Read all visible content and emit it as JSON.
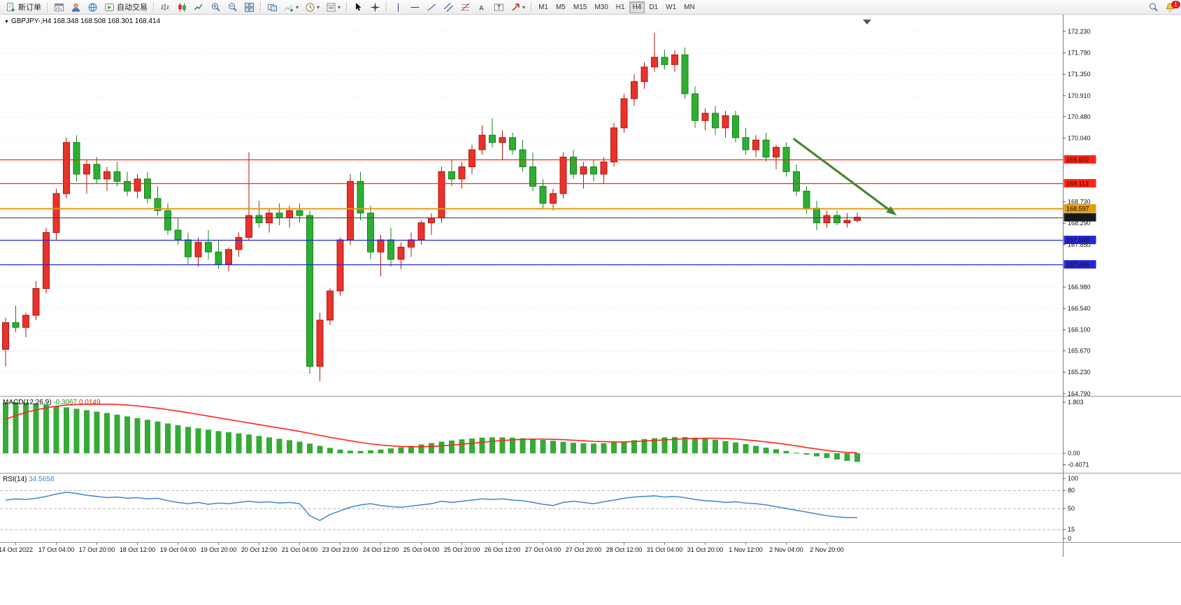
{
  "toolbar": {
    "new_order_label": "新订单",
    "autotrading_label": "自动交易",
    "timeframes": [
      "M1",
      "M5",
      "M15",
      "M30",
      "H1",
      "H4",
      "D1",
      "W1",
      "MN"
    ],
    "active_timeframe": "H4",
    "notification_count": "1"
  },
  "chart": {
    "symbol_label": "GBPJPY-,H4",
    "ohlc_text": "168.348 168.508 168.301 168.414"
  },
  "chart_data": {
    "type": "candlestick",
    "symbol": "GBPJPY-",
    "timeframe": "H4",
    "last_ohlc": {
      "open": "168.348",
      "high": "168.508",
      "low": "168.301",
      "close": "168.414"
    },
    "price_axis_ticks": [
      "172.230",
      "171.790",
      "171.350",
      "170.910",
      "170.480",
      "170.040",
      "168.730",
      "168.290",
      "167.850",
      "167.410",
      "166.980",
      "166.540",
      "166.100",
      "165.670",
      "165.230",
      "164.790"
    ],
    "time_labels": [
      "14 Oct 2022",
      "17 Oct 04:00",
      "17 Oct 20:00",
      "18 Oct 12:00",
      "19 Oct 04:00",
      "19 Oct 20:00",
      "20 Oct 12:00",
      "21 Oct 04:00",
      "23 Oct 23:00",
      "24 Oct 12:00",
      "25 Oct 04:00",
      "25 Oct 20:00",
      "26 Oct 12:00",
      "27 Oct 04:00",
      "27 Oct 20:00",
      "28 Oct 12:00",
      "31 Oct 04:00",
      "31 Oct 20:00",
      "1 Nov 12:00",
      "2 Nov 04:00",
      "2 Nov 20:00"
    ],
    "time_label_first_index": 1,
    "time_label_step": 4,
    "candles": [
      [
        165.7,
        166.35,
        165.35,
        166.25
      ],
      [
        166.25,
        166.6,
        166.05,
        166.15
      ],
      [
        166.15,
        166.45,
        165.95,
        166.4
      ],
      [
        166.4,
        167.1,
        166.3,
        166.95
      ],
      [
        166.95,
        168.2,
        166.85,
        168.1
      ],
      [
        168.1,
        169.0,
        167.95,
        168.9
      ],
      [
        168.9,
        170.05,
        168.8,
        169.95
      ],
      [
        169.95,
        170.1,
        169.15,
        169.3
      ],
      [
        169.3,
        169.6,
        168.9,
        169.5
      ],
      [
        169.5,
        169.65,
        169.1,
        169.2
      ],
      [
        169.2,
        169.45,
        168.95,
        169.35
      ],
      [
        169.35,
        169.55,
        169.05,
        169.15
      ],
      [
        169.15,
        169.35,
        168.85,
        168.95
      ],
      [
        168.95,
        169.3,
        168.8,
        169.2
      ],
      [
        169.2,
        169.35,
        168.7,
        168.8
      ],
      [
        168.8,
        169.05,
        168.45,
        168.55
      ],
      [
        168.55,
        168.7,
        168.05,
        168.15
      ],
      [
        168.15,
        168.4,
        167.85,
        167.95
      ],
      [
        167.95,
        168.1,
        167.45,
        167.6
      ],
      [
        167.6,
        168.0,
        167.4,
        167.9
      ],
      [
        167.9,
        168.15,
        167.55,
        167.7
      ],
      [
        167.7,
        167.95,
        167.35,
        167.45
      ],
      [
        167.45,
        167.8,
        167.3,
        167.75
      ],
      [
        167.75,
        168.1,
        167.6,
        168.0
      ],
      [
        168.0,
        169.75,
        167.95,
        168.45
      ],
      [
        168.45,
        168.75,
        168.2,
        168.3
      ],
      [
        168.3,
        168.6,
        168.1,
        168.5
      ],
      [
        168.5,
        168.7,
        168.25,
        168.4
      ],
      [
        168.4,
        168.65,
        168.2,
        168.55
      ],
      [
        168.55,
        168.7,
        168.3,
        168.45
      ],
      [
        168.45,
        168.55,
        165.2,
        165.35
      ],
      [
        165.35,
        166.45,
        165.05,
        166.3
      ],
      [
        166.3,
        166.95,
        166.2,
        166.9
      ],
      [
        166.9,
        168.0,
        166.8,
        167.95
      ],
      [
        167.95,
        169.3,
        167.85,
        169.15
      ],
      [
        169.15,
        169.35,
        168.35,
        168.5
      ],
      [
        168.5,
        168.65,
        167.55,
        167.7
      ],
      [
        167.7,
        168.05,
        167.2,
        167.95
      ],
      [
        167.95,
        168.2,
        167.4,
        167.55
      ],
      [
        167.55,
        167.9,
        167.35,
        167.8
      ],
      [
        167.8,
        168.1,
        167.6,
        167.95
      ],
      [
        167.95,
        168.35,
        167.85,
        168.3
      ],
      [
        168.3,
        168.5,
        168.05,
        168.4
      ],
      [
        168.4,
        169.45,
        168.3,
        169.35
      ],
      [
        169.35,
        169.6,
        169.05,
        169.2
      ],
      [
        169.2,
        169.55,
        169.0,
        169.45
      ],
      [
        169.45,
        169.9,
        169.3,
        169.8
      ],
      [
        169.8,
        170.3,
        169.7,
        170.1
      ],
      [
        170.1,
        170.45,
        169.85,
        169.95
      ],
      [
        169.95,
        170.2,
        169.6,
        170.05
      ],
      [
        170.05,
        170.15,
        169.7,
        169.8
      ],
      [
        169.8,
        170.0,
        169.35,
        169.45
      ],
      [
        169.45,
        169.75,
        168.95,
        169.05
      ],
      [
        169.05,
        169.2,
        168.6,
        168.7
      ],
      [
        168.7,
        169.0,
        168.55,
        168.9
      ],
      [
        168.9,
        169.75,
        168.8,
        169.65
      ],
      [
        169.65,
        169.8,
        169.2,
        169.3
      ],
      [
        169.3,
        169.55,
        169.0,
        169.45
      ],
      [
        169.45,
        169.6,
        169.15,
        169.3
      ],
      [
        169.3,
        169.65,
        169.1,
        169.55
      ],
      [
        169.55,
        170.35,
        169.45,
        170.25
      ],
      [
        170.25,
        170.95,
        170.15,
        170.85
      ],
      [
        170.85,
        171.35,
        170.7,
        171.2
      ],
      [
        171.2,
        171.6,
        171.05,
        171.5
      ],
      [
        171.5,
        172.2,
        171.4,
        171.7
      ],
      [
        171.7,
        171.85,
        171.45,
        171.55
      ],
      [
        171.55,
        171.85,
        171.4,
        171.75
      ],
      [
        171.75,
        171.9,
        170.85,
        170.95
      ],
      [
        170.95,
        171.1,
        170.25,
        170.4
      ],
      [
        170.4,
        170.65,
        170.2,
        170.55
      ],
      [
        170.55,
        170.7,
        170.1,
        170.25
      ],
      [
        170.25,
        170.6,
        170.05,
        170.5
      ],
      [
        170.5,
        170.6,
        169.95,
        170.05
      ],
      [
        170.05,
        170.25,
        169.7,
        169.8
      ],
      [
        169.8,
        170.1,
        169.65,
        170.0
      ],
      [
        170.0,
        170.15,
        169.55,
        169.65
      ],
      [
        169.65,
        169.9,
        169.4,
        169.85
      ],
      [
        169.85,
        169.95,
        169.25,
        169.35
      ],
      [
        169.35,
        169.5,
        168.85,
        168.95
      ],
      [
        168.95,
        169.05,
        168.5,
        168.6
      ],
      [
        168.6,
        168.75,
        168.15,
        168.3
      ],
      [
        168.3,
        168.55,
        168.2,
        168.45
      ],
      [
        168.45,
        168.55,
        168.25,
        168.3
      ],
      [
        168.3,
        168.5,
        168.2,
        168.35
      ],
      [
        168.348,
        168.508,
        168.301,
        168.414
      ]
    ],
    "h_lines": [
      {
        "price": 169.602,
        "label": "169.602",
        "color": "red"
      },
      {
        "price": 169.113,
        "label": "169.113",
        "color": "red"
      },
      {
        "price": 168.597,
        "label": "168.597",
        "color": "gold"
      },
      {
        "price": 167.948,
        "label": "167.948",
        "color": "blue"
      },
      {
        "price": 167.446,
        "label": "167.446",
        "color": "blue"
      }
    ],
    "current_price": {
      "price": 168.414,
      "label": "168.414"
    },
    "trend_arrow": {
      "from_index": 77.7,
      "from_price": 170.03,
      "to_index": 87.9,
      "to_price": 168.45
    },
    "macd": {
      "label": "MACD(12,26,9)",
      "main_value": "-0.3067",
      "signal_value": "0.0149",
      "scale": [
        {
          "value": 1.803,
          "label": "1.803"
        },
        {
          "value": 0,
          "label": "0.00"
        },
        {
          "value": -0.4071,
          "label": "-0.4071"
        }
      ],
      "histogram": [
        1.78,
        1.8,
        1.79,
        1.76,
        1.72,
        1.67,
        1.62,
        1.57,
        1.52,
        1.47,
        1.42,
        1.36,
        1.3,
        1.24,
        1.18,
        1.12,
        1.05,
        0.99,
        0.93,
        0.88,
        0.83,
        0.78,
        0.74,
        0.7,
        0.66,
        0.61,
        0.56,
        0.51,
        0.46,
        0.41,
        0.34,
        0.26,
        0.19,
        0.13,
        0.09,
        0.08,
        0.1,
        0.13,
        0.17,
        0.21,
        0.26,
        0.31,
        0.36,
        0.41,
        0.45,
        0.49,
        0.52,
        0.55,
        0.56,
        0.56,
        0.55,
        0.53,
        0.5,
        0.47,
        0.44,
        0.4,
        0.37,
        0.35,
        0.34,
        0.35,
        0.38,
        0.42,
        0.46,
        0.5,
        0.53,
        0.56,
        0.57,
        0.57,
        0.55,
        0.52,
        0.48,
        0.43,
        0.38,
        0.32,
        0.26,
        0.2,
        0.14,
        0.08,
        0.02,
        -0.05,
        -0.11,
        -0.17,
        -0.22,
        -0.27,
        -0.3067
      ],
      "signal": [
        1.2,
        1.33,
        1.44,
        1.53,
        1.6,
        1.66,
        1.7,
        1.72,
        1.73,
        1.73,
        1.73,
        1.72,
        1.7,
        1.67,
        1.63,
        1.59,
        1.54,
        1.49,
        1.43,
        1.37,
        1.31,
        1.25,
        1.19,
        1.13,
        1.07,
        1.01,
        0.95,
        0.89,
        0.83,
        0.77,
        0.7,
        0.63,
        0.56,
        0.5,
        0.44,
        0.38,
        0.33,
        0.29,
        0.26,
        0.24,
        0.23,
        0.23,
        0.24,
        0.26,
        0.29,
        0.32,
        0.35,
        0.39,
        0.42,
        0.45,
        0.47,
        0.49,
        0.5,
        0.5,
        0.49,
        0.48,
        0.46,
        0.44,
        0.42,
        0.41,
        0.4,
        0.4,
        0.41,
        0.43,
        0.45,
        0.47,
        0.49,
        0.51,
        0.52,
        0.53,
        0.53,
        0.52,
        0.5,
        0.47,
        0.44,
        0.4,
        0.36,
        0.31,
        0.26,
        0.2,
        0.15,
        0.1,
        0.06,
        0.03,
        0.015
      ]
    },
    "rsi": {
      "label": "RSI(14)",
      "value": "34.5658",
      "levels": [
        80,
        50,
        15
      ],
      "scale": [
        {
          "value": 100,
          "label": "100"
        },
        {
          "value": 80,
          "label": "80"
        },
        {
          "value": 50,
          "label": "50"
        },
        {
          "value": 15,
          "label": "15"
        },
        {
          "value": 0,
          "label": "0"
        }
      ],
      "values": [
        64,
        66,
        65,
        67,
        70,
        74,
        77,
        75,
        72,
        70,
        68,
        69,
        67,
        68,
        66,
        67,
        63,
        60,
        58,
        60,
        57,
        59,
        58,
        60,
        62,
        60,
        61,
        59,
        60,
        58,
        38,
        30,
        40,
        46,
        52,
        56,
        58,
        55,
        53,
        52,
        54,
        56,
        58,
        62,
        60,
        62,
        64,
        66,
        65,
        66,
        64,
        63,
        60,
        57,
        55,
        60,
        62,
        60,
        58,
        61,
        64,
        67,
        69,
        70,
        71,
        69,
        70,
        68,
        65,
        63,
        62,
        60,
        61,
        59,
        58,
        56,
        53,
        50,
        47,
        44,
        41,
        38,
        36,
        35,
        34.57
      ]
    },
    "colors": {
      "bull": "#e8332a",
      "bull_border": "#b3170f",
      "bear": "#2fae32",
      "bear_border": "#13861c",
      "macd_histogram": "#35ab35",
      "macd_signal": "#ff2616",
      "rsi_line": "#3f86d8",
      "level_red": "#ff2616",
      "level_blue": "#2626d9",
      "level_gold": "#e39c11",
      "price_line": "#3c3c3c",
      "arrow": "#4a8630",
      "grid": "#e7e7e7"
    }
  }
}
